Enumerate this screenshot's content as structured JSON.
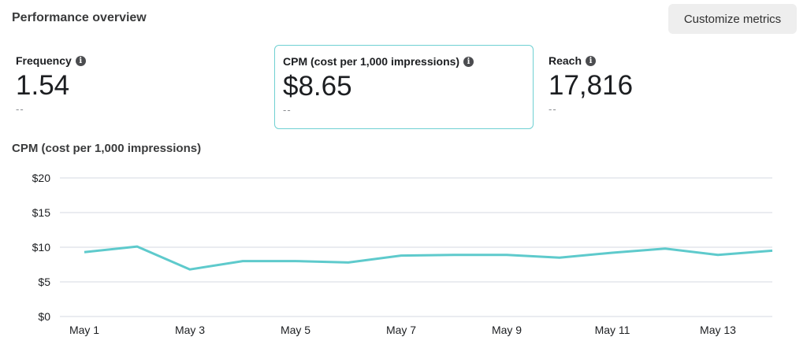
{
  "header": {
    "title": "Performance overview",
    "customize_label": "Customize metrics"
  },
  "metrics": [
    {
      "label": "Frequency",
      "value": "1.54",
      "delta": "--",
      "selected": false
    },
    {
      "label": "CPM (cost per 1,000 impressions)",
      "value": "$8.65",
      "delta": "--",
      "selected": true
    },
    {
      "label": "Reach",
      "value": "17,816",
      "delta": "--",
      "selected": false
    }
  ],
  "colors": {
    "accent": "#5ecacc",
    "grid": "#e4e6eb",
    "selected_border": "#6fd0d2"
  },
  "chart_data": {
    "type": "line",
    "title": "CPM (cost per 1,000 impressions)",
    "xlabel": "",
    "ylabel": "",
    "x": [
      "May 1",
      "May 2",
      "May 3",
      "May 4",
      "May 5",
      "May 6",
      "May 7",
      "May 8",
      "May 9",
      "May 10",
      "May 11",
      "May 12",
      "May 13",
      "May 14"
    ],
    "x_tick_labels": [
      "May 1",
      "May 3",
      "May 5",
      "May 7",
      "May 9",
      "May 11",
      "May 13"
    ],
    "y_tick_labels": [
      "$0",
      "$5",
      "$10",
      "$15",
      "$20"
    ],
    "ylim": [
      0,
      20
    ],
    "grid": true,
    "series": [
      {
        "name": "CPM",
        "values": [
          9.3,
          10.1,
          6.8,
          8.0,
          8.0,
          7.8,
          8.8,
          8.9,
          8.9,
          8.5,
          9.2,
          9.8,
          8.9,
          9.5
        ]
      }
    ]
  }
}
